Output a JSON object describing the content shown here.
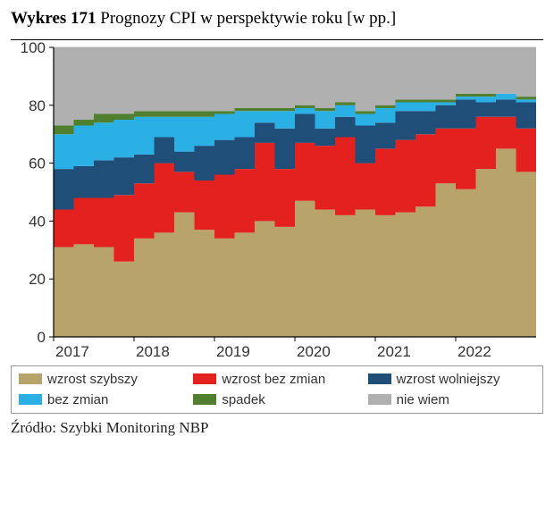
{
  "title_bold": "Wykres 171",
  "title_rest": " Prognozy CPI w perspektywie roku [w pp.]",
  "source": "Źródło: Szybki Monitoring NBP",
  "chart": {
    "type": "stacked-area",
    "background_color": "#ffffff",
    "plot_background": "#ffffff",
    "ylim": [
      0,
      100
    ],
    "yticks": [
      0,
      20,
      40,
      60,
      80,
      100
    ],
    "xlim": [
      2017,
      2023
    ],
    "xticks": [
      2017,
      2018,
      2019,
      2020,
      2021,
      2022
    ],
    "grid_color": "#bfbfbf",
    "axis_color": "#000000",
    "series_order": [
      "wzrost_szybszy",
      "wzrost_bez_zmian",
      "wzrost_wolniejszy",
      "bez_zmian",
      "spadek",
      "nie_wiem"
    ],
    "colors": {
      "wzrost_szybszy": "#b8a46b",
      "wzrost_bez_zmian": "#e3221f",
      "wzrost_wolniejszy": "#1f4e79",
      "bez_zmian": "#2bb0e6",
      "spadek": "#4f7f2f",
      "nie_wiem": "#b0b0b0"
    },
    "labels": {
      "wzrost_szybszy": "wzrost szybszy",
      "wzrost_bez_zmian": "wzrost bez zmian",
      "wzrost_wolniejszy": "wzrost wolniejszy",
      "bez_zmian": "bez zmian",
      "spadek": "spadek",
      "nie_wiem": "nie wiem"
    },
    "x": [
      2017.0,
      2017.25,
      2017.5,
      2017.75,
      2018.0,
      2018.25,
      2018.5,
      2018.75,
      2019.0,
      2019.25,
      2019.5,
      2019.75,
      2020.0,
      2020.25,
      2020.5,
      2020.75,
      2021.0,
      2021.25,
      2021.5,
      2021.75,
      2022.0,
      2022.25,
      2022.5,
      2022.75,
      2023.0
    ],
    "stacks": {
      "wzrost_szybszy": [
        31,
        32,
        31,
        26,
        34,
        36,
        43,
        37,
        34,
        36,
        40,
        38,
        47,
        44,
        42,
        44,
        42,
        43,
        45,
        53,
        51,
        58,
        65,
        57,
        48
      ],
      "wzrost_bez_zmian": [
        13,
        16,
        17,
        23,
        19,
        24,
        14,
        17,
        22,
        22,
        27,
        20,
        20,
        22,
        27,
        16,
        23,
        25,
        25,
        19,
        21,
        18,
        11,
        15,
        15
      ],
      "wzrost_wolniejszy": [
        14,
        11,
        13,
        13,
        10,
        9,
        7,
        12,
        12,
        11,
        7,
        14,
        10,
        6,
        7,
        13,
        9,
        10,
        8,
        8,
        10,
        5,
        6,
        9,
        17
      ],
      "bez_zmian": [
        12,
        14,
        13,
        13,
        13,
        7,
        12,
        10,
        9,
        9,
        4,
        6,
        2,
        6,
        4,
        4,
        5,
        3,
        3,
        1,
        1,
        2,
        2,
        1,
        1
      ],
      "spadek": [
        3,
        2,
        3,
        2,
        2,
        2,
        2,
        2,
        1,
        1,
        1,
        1,
        1,
        1,
        1,
        1,
        1,
        1,
        1,
        1,
        1,
        1,
        0,
        1,
        2
      ],
      "nie_wiem": [
        27,
        25,
        23,
        23,
        22,
        22,
        22,
        22,
        22,
        21,
        21,
        21,
        20,
        21,
        19,
        22,
        20,
        18,
        18,
        18,
        16,
        16,
        16,
        17,
        17
      ]
    },
    "label_fontsize": 17,
    "legend_fontsize": 15
  }
}
